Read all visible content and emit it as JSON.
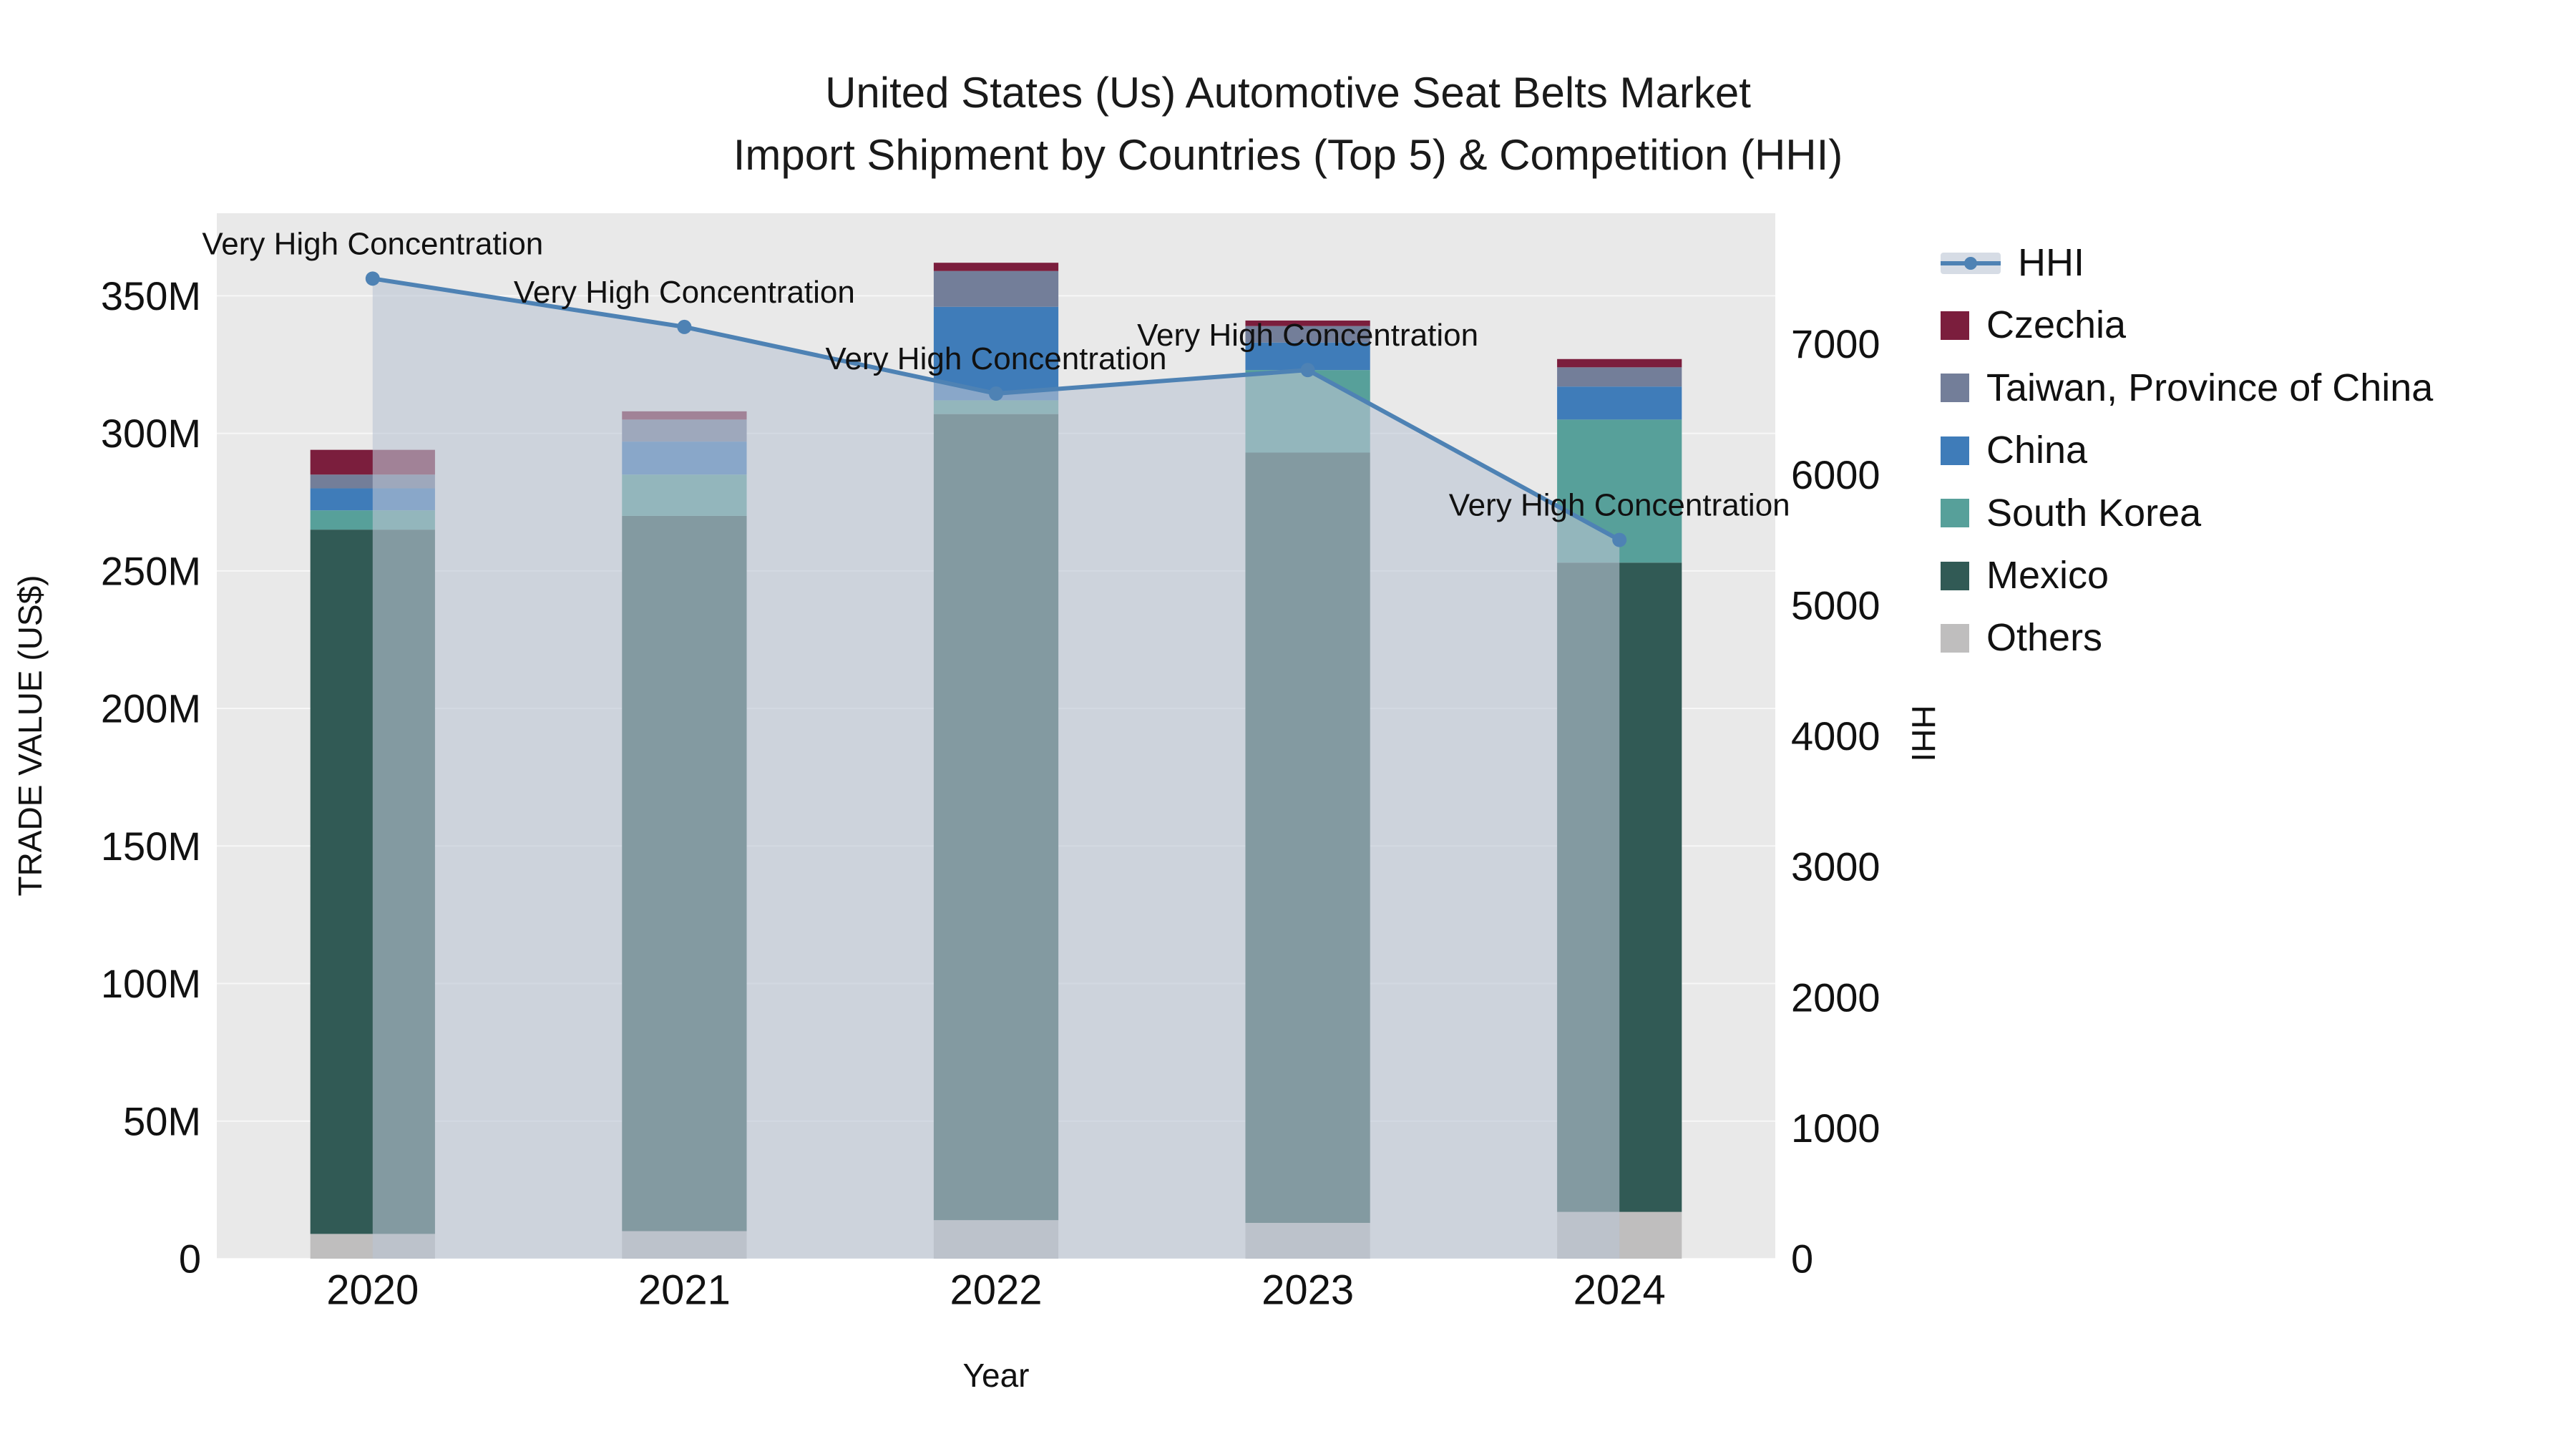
{
  "title_line1": "United States (Us) Automotive Seat Belts Market",
  "title_line2": "Import Shipment by Countries (Top 5) & Competition (HHI)",
  "chart_data": {
    "type": "bar",
    "subtype": "stacked-bars-with-hhi-line-and-area",
    "title": "United States (Us) Automotive Seat Belts Market",
    "subtitle": "Import Shipment by Countries (Top 5) & Competition (HHI)",
    "xlabel": "Year",
    "ylabel_left": "TRADE VALUE (US$)",
    "ylabel_right": "HHI",
    "categories": [
      "2020",
      "2021",
      "2022",
      "2023",
      "2024"
    ],
    "bar_value_unit": "Million US$",
    "series": [
      {
        "name": "Others",
        "color": "#bfbebe",
        "values": [
          9,
          10,
          14,
          13,
          17
        ]
      },
      {
        "name": "Mexico",
        "color": "#315a55",
        "values": [
          256,
          260,
          293,
          280,
          236
        ]
      },
      {
        "name": "South Korea",
        "color": "#57a09a",
        "values": [
          7,
          15,
          5,
          30,
          52
        ]
      },
      {
        "name": "China",
        "color": "#3f7cb9",
        "values": [
          8,
          12,
          34,
          10,
          12
        ]
      },
      {
        "name": "Taiwan, Province of China",
        "color": "#737e99",
        "values": [
          5,
          8,
          13,
          6,
          7
        ]
      },
      {
        "name": "Czechia",
        "color": "#7b1e3d",
        "values": [
          9,
          3,
          3,
          2,
          3
        ]
      }
    ],
    "line_series": {
      "name": "HHI",
      "color": "#4e82b4",
      "area_fill": "rgba(186,197,212,0.60)",
      "values": [
        7500,
        7130,
        6620,
        6800,
        5500
      ]
    },
    "annotations": [
      "Very High Concentration",
      "Very High Concentration",
      "Very High Concentration",
      "Very High Concentration",
      "Very High Concentration"
    ],
    "left_axis": {
      "max": 380,
      "tick_values": [
        0,
        50,
        100,
        150,
        200,
        250,
        300,
        350
      ],
      "tick_labels": [
        "0",
        "50M",
        "100M",
        "150M",
        "200M",
        "250M",
        "300M",
        "350M"
      ]
    },
    "right_axis": {
      "max": 8000,
      "tick_values": [
        0,
        1000,
        2000,
        3000,
        4000,
        5000,
        6000,
        7000
      ],
      "tick_labels": [
        "0",
        "1000",
        "2000",
        "3000",
        "4000",
        "5000",
        "6000",
        "7000"
      ]
    },
    "legend_order": [
      "HHI",
      "Czechia",
      "Taiwan, Province of China",
      "China",
      "South Korea",
      "Mexico",
      "Others"
    ],
    "plot_bg": "#e9e9e9",
    "grid_color": "#ffffff"
  }
}
